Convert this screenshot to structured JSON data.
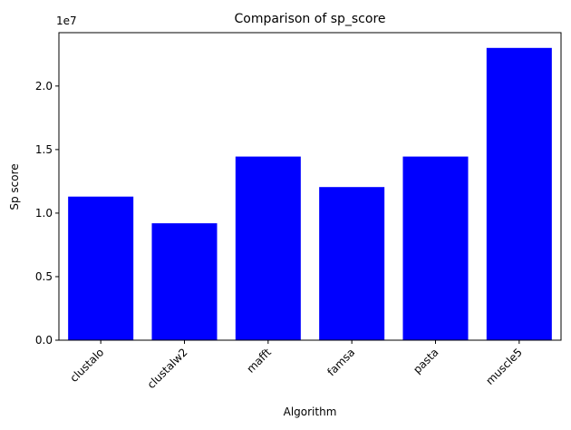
{
  "chart_data": {
    "type": "bar",
    "title": "Comparison of sp_score",
    "xlabel": "Algorithm",
    "ylabel": "Sp score",
    "offset_label": "1e7",
    "categories": [
      "clustalo",
      "clustalw2",
      "mafft",
      "famsa",
      "pasta",
      "muscle5"
    ],
    "values": [
      11300000,
      9200000,
      14450000,
      12050000,
      14450000,
      23000000
    ],
    "ylim": [
      0,
      24200000
    ],
    "yticks": [
      0,
      5000000,
      10000000,
      15000000,
      20000000
    ],
    "ytick_labels": [
      "0.0",
      "0.5",
      "1.0",
      "1.5",
      "2.0"
    ],
    "bar_color": "#0000ff",
    "grid": false,
    "legend": "none"
  }
}
